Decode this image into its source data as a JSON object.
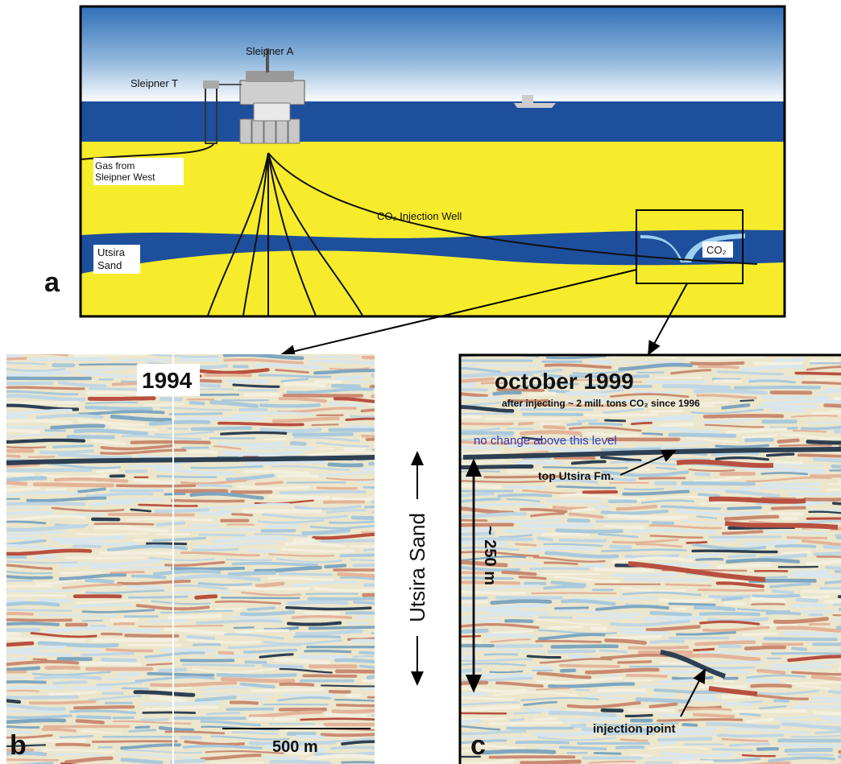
{
  "panel_a": {
    "label": "a",
    "sleipner_a": "Sleipner A",
    "sleipner_t": "Sleipner T",
    "gas_from": [
      "Gas from",
      "Sleipner West"
    ],
    "injection_well": "CO₂ Injection Well",
    "utsira_sand": [
      "Utsira",
      "Sand"
    ],
    "co2": "CO₂"
  },
  "panel_b": {
    "label": "b",
    "year": "1994",
    "scale": "500 m"
  },
  "middle": {
    "utsira_sand": "Utsira Sand"
  },
  "panel_c": {
    "label": "c",
    "title": "october 1999",
    "subtitle": "after injecting ~ 2 mill. tons CO₂ since 1996",
    "no_change": "no change above this level",
    "top_utsira": "top Utsira Fm.",
    "thickness": "~ 250 m",
    "injection_point": "injection point"
  }
}
